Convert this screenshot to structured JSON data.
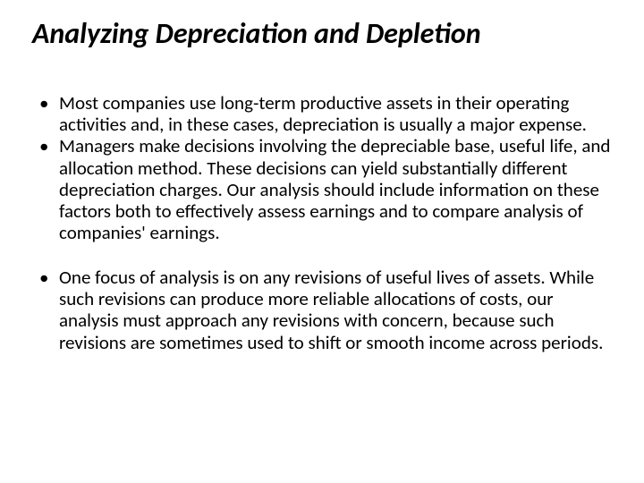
{
  "slide": {
    "title": "Analyzing Depreciation and Depletion",
    "title_fontsize": 32,
    "title_fontweight": 700,
    "title_italic": true,
    "title_color": "#000000",
    "body_fontsize": 21,
    "body_color": "#000000",
    "background_color": "#ffffff",
    "bullets": [
      "Most companies use long-term productive assets in their operating activities and, in these cases, depreciation is usually a major expense.",
      "Managers make decisions involving the depreciable base, useful life, and allocation method. These decisions can yield substantially different depreciation charges. Our analysis should include information on these factors both to effectively assess earnings and to compare analysis of companies' earnings.",
      "One focus of analysis is on any revisions of useful lives of assets. While such revisions can produce more reliable allocations of costs, our analysis must approach any revisions with concern, because such revisions are sometimes used to shift or smooth income across periods."
    ],
    "gap_after_index": 1
  }
}
